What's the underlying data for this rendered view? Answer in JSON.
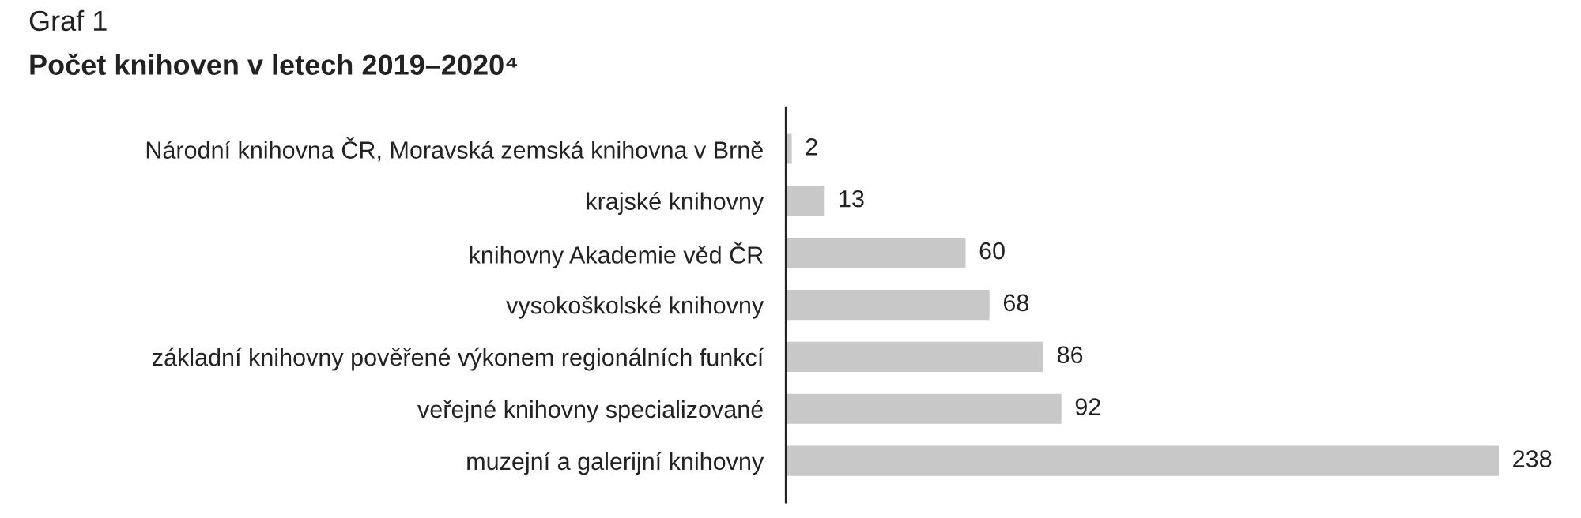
{
  "chart_data": {
    "type": "bar",
    "orientation": "horizontal",
    "subtitle": "Graf 1",
    "title": "Počet knihoven v letech 2019–2020⁴",
    "categories": [
      "Národní knihovna ČR, Moravská zemská knihovna v Brně",
      "krajské knihovny",
      "knihovny Akademie věd ČR",
      "vysokoškolské knihovny",
      "základní knihovny pověřené výkonem regionálních funkcí",
      "veřejné knihovny specializované",
      "muzejní a galerijní knihovny"
    ],
    "values": [
      2,
      13,
      60,
      68,
      86,
      92,
      238
    ],
    "color": "#c8c8c8",
    "data_labels": true,
    "grid": false,
    "legend": false
  }
}
